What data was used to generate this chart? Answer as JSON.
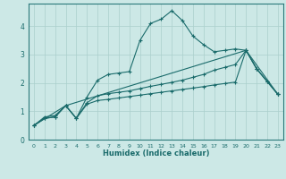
{
  "xlabel": "Humidex (Indice chaleur)",
  "background_color": "#cce8e6",
  "grid_color": "#aacfcc",
  "line_color": "#1a6b6b",
  "spine_color": "#2a7a7a",
  "xlim": [
    -0.5,
    23.5
  ],
  "ylim": [
    0,
    4.8
  ],
  "yticks": [
    0,
    1,
    2,
    3,
    4
  ],
  "xticks": [
    0,
    1,
    2,
    3,
    4,
    5,
    6,
    7,
    8,
    9,
    10,
    11,
    12,
    13,
    14,
    15,
    16,
    17,
    18,
    19,
    20,
    21,
    22,
    23
  ],
  "line1_x": [
    0,
    1,
    2,
    3,
    4,
    5,
    6,
    7,
    8,
    9,
    10,
    11,
    12,
    13,
    14,
    15,
    16,
    17,
    18,
    19,
    20,
    21,
    22,
    23
  ],
  "line1_y": [
    0.5,
    0.8,
    0.85,
    1.2,
    0.75,
    1.5,
    2.1,
    2.3,
    2.35,
    2.4,
    3.5,
    4.1,
    4.25,
    4.55,
    4.2,
    3.65,
    3.35,
    3.1,
    3.15,
    3.2,
    3.15,
    2.5,
    2.05,
    1.6
  ],
  "line2_x": [
    0,
    1,
    2,
    3,
    4,
    5,
    6,
    7,
    8,
    9,
    10,
    11,
    12,
    13,
    14,
    15,
    16,
    17,
    18,
    19,
    20,
    21,
    22,
    23
  ],
  "line2_y": [
    0.5,
    0.75,
    0.8,
    1.2,
    0.75,
    1.3,
    1.55,
    1.62,
    1.67,
    1.72,
    1.8,
    1.88,
    1.95,
    2.02,
    2.1,
    2.2,
    2.3,
    2.45,
    2.55,
    2.65,
    3.15,
    2.5,
    2.05,
    1.6
  ],
  "line3_x": [
    0,
    1,
    2,
    3,
    4,
    5,
    6,
    7,
    8,
    9,
    10,
    11,
    12,
    13,
    14,
    15,
    16,
    17,
    18,
    19,
    20,
    21,
    22,
    23
  ],
  "line3_y": [
    0.5,
    0.75,
    0.8,
    1.2,
    0.75,
    1.25,
    1.38,
    1.42,
    1.47,
    1.52,
    1.57,
    1.62,
    1.67,
    1.72,
    1.77,
    1.82,
    1.87,
    1.93,
    1.98,
    2.03,
    3.15,
    2.5,
    2.05,
    1.6
  ],
  "line4_x": [
    0,
    3,
    20,
    23
  ],
  "line4_y": [
    0.5,
    1.2,
    3.15,
    1.6
  ]
}
